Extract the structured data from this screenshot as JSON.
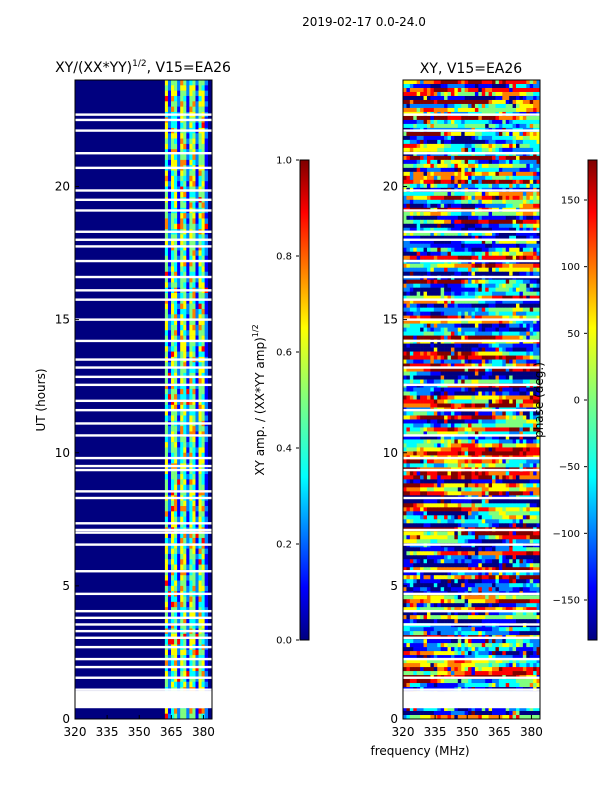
{
  "suptitle": "2019-02-17 0.0-24.0",
  "colors": {
    "jet": [
      "#00007f",
      "#0000ff",
      "#007fff",
      "#00ffff",
      "#7fff7f",
      "#ffff00",
      "#ff7f00",
      "#ff0000",
      "#7f0000"
    ],
    "background": "#00007f"
  },
  "chart_data": [
    {
      "type": "heatmap",
      "title_main": "XY/(XX*YY)",
      "title_sup": "1/2",
      "title_rest": ", V15=EA26",
      "xlabel": "",
      "ylabel": "UT (hours)",
      "xlim": [
        320,
        384
      ],
      "ylim": [
        0,
        24
      ],
      "xticks": [
        "320",
        "335",
        "350",
        "365",
        "380"
      ],
      "xtick_values": [
        320,
        335,
        350,
        365,
        380
      ],
      "yticks": [
        "0",
        "5",
        "10",
        "15",
        "20"
      ],
      "ytick_values": [
        0,
        5,
        10,
        15,
        20
      ],
      "active_band": [
        362,
        382
      ],
      "gap_hours": [
        0.45,
        0.9,
        1.0,
        1.1,
        1.55,
        1.95,
        2.25,
        2.7,
        3.05,
        3.3,
        3.55,
        3.8,
        4.05,
        4.7,
        5.55,
        6.55,
        7.0,
        7.1,
        7.35,
        8.3,
        8.55,
        9.35,
        9.5,
        9.8,
        10.65,
        11.1,
        11.6,
        11.95,
        12.55,
        12.85,
        13.2,
        13.5,
        14.2,
        15.0,
        15.75,
        16.1,
        16.6,
        17.2,
        17.75,
        18.0,
        18.3,
        19.1,
        19.5,
        19.85,
        20.7,
        21.25,
        22.1,
        22.5,
        22.7
      ]
    },
    {
      "type": "colorbar",
      "label_main": "XY amp. / (XX*YY amp)",
      "label_sup": "1/2",
      "ticks": [
        "0.0",
        "0.2",
        "0.4",
        "0.6",
        "0.8",
        "1.0"
      ],
      "tick_values": [
        0.0,
        0.2,
        0.4,
        0.6,
        0.8,
        1.0
      ],
      "range": [
        0,
        1
      ]
    },
    {
      "type": "heatmap",
      "title": "XY, V15=EA26",
      "xlabel": "frequency (MHz)",
      "ylabel": "",
      "xlim": [
        320,
        384
      ],
      "ylim": [
        0,
        24
      ],
      "xticks": [
        "320",
        "335",
        "350",
        "365",
        "380"
      ],
      "xtick_values": [
        320,
        335,
        350,
        365,
        380
      ],
      "yticks": [
        "0",
        "5",
        "10",
        "15",
        "20"
      ],
      "ytick_values": [
        0,
        5,
        10,
        15,
        20
      ],
      "gap_hours": [
        0.45,
        1.1,
        1.55,
        2.25,
        3.05,
        3.55,
        4.05,
        4.7,
        5.55,
        6.55,
        7.1,
        8.3,
        9.35,
        9.8,
        10.65,
        11.6,
        12.55,
        13.2,
        14.2,
        15.0,
        15.75,
        16.6,
        17.2,
        18.0,
        18.3,
        19.1,
        19.85,
        21.25,
        22.1,
        22.7
      ]
    },
    {
      "type": "colorbar",
      "label": "phase (deg.)",
      "ticks": [
        "150",
        "100",
        "50",
        "0",
        "−50",
        "−100",
        "−150"
      ],
      "tick_values": [
        150,
        100,
        50,
        0,
        -50,
        -100,
        -150
      ],
      "range": [
        -180,
        180
      ]
    }
  ]
}
